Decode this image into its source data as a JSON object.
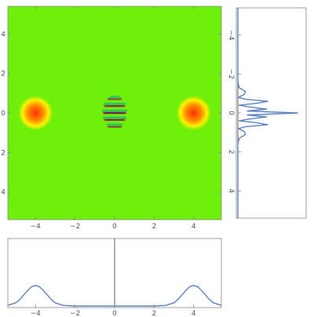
{
  "colors": {
    "field": "#6ef00a",
    "hot_outer": "#fff200",
    "hot_mid": "#ff8a00",
    "hot_core": "#ff3000",
    "stripe_dark": "#1e2a7a",
    "stripe_red": "#d81c1c",
    "stripe_green": "#21c860",
    "curve": "#5b82bf",
    "axis": "#888888"
  },
  "chart_data": [
    {
      "type": "heatmap",
      "title": "",
      "xlabel": "",
      "ylabel": "",
      "xlim": [
        -5.4,
        5.4
      ],
      "ylim": [
        -5.4,
        5.4
      ],
      "x_ticks": [
        -4,
        -2,
        0,
        2,
        4
      ],
      "y_ticks": [
        4,
        2,
        0,
        -2,
        -4
      ],
      "x_tick_labels": [
        "−4",
        "−2",
        "0",
        "2",
        "4"
      ],
      "y_tick_labels": [
        "4",
        "2",
        "0",
        "2",
        "4"
      ],
      "features": [
        {
          "kind": "gaussian-spot",
          "x": -4,
          "y": 0,
          "sigma": 0.4
        },
        {
          "kind": "gaussian-spot",
          "x": 4,
          "y": 0,
          "sigma": 0.4
        },
        {
          "kind": "interference-fringes",
          "x": 0,
          "y": 0,
          "width": 1.3,
          "height": 1.8,
          "fringe_spacing": 0.35
        }
      ]
    },
    {
      "type": "line",
      "orientation": "vertical",
      "title": "",
      "ylim": [
        -5.4,
        5.4
      ],
      "y_ticks": [
        -4,
        -2,
        0,
        2,
        4
      ],
      "y_tick_labels": [
        "−4",
        "−2",
        "0",
        "2",
        "4"
      ],
      "series": [
        {
          "y": [
            -5.4,
            -1.6,
            -1.3,
            -1.1,
            -0.95,
            -0.8,
            -0.7,
            -0.6,
            -0.5,
            -0.4,
            -0.3,
            -0.2,
            -0.1,
            0,
            0.1,
            0.2,
            0.3,
            0.4,
            0.5,
            0.6,
            0.7,
            0.8,
            0.95,
            1.1,
            1.3,
            1.6,
            5.4
          ],
          "values": [
            0,
            0,
            0.02,
            0.12,
            0.1,
            0.01,
            0.12,
            0.47,
            0.3,
            0.02,
            0.2,
            0.45,
            0.15,
            0.94,
            0.15,
            0.45,
            0.2,
            0.02,
            0.3,
            0.47,
            0.12,
            0.01,
            0.1,
            0.12,
            0.02,
            0,
            0
          ]
        }
      ]
    },
    {
      "type": "line",
      "title": "",
      "xlim": [
        -5.4,
        5.4
      ],
      "ylim": [
        0,
        1
      ],
      "x_ticks": [
        -4,
        -2,
        0,
        2,
        4
      ],
      "x_tick_labels": [
        "−4",
        "−2",
        "0",
        "2",
        "4"
      ],
      "series": [
        {
          "x": [
            -5.4,
            -5.0,
            -4.8,
            -4.6,
            -4.4,
            -4.2,
            -4.0,
            -3.8,
            -3.6,
            -3.4,
            -3.2,
            -3.0,
            -2.6,
            -2.0,
            0,
            2.0,
            2.6,
            3.0,
            3.2,
            3.4,
            3.6,
            3.8,
            4.0,
            4.2,
            4.4,
            4.6,
            4.8,
            5.0,
            5.4
          ],
          "values": [
            0.01,
            0.05,
            0.1,
            0.17,
            0.24,
            0.3,
            0.32,
            0.3,
            0.24,
            0.17,
            0.1,
            0.05,
            0.01,
            0,
            0,
            0,
            0.01,
            0.05,
            0.1,
            0.17,
            0.24,
            0.3,
            0.32,
            0.3,
            0.24,
            0.17,
            0.1,
            0.05,
            0.01
          ]
        }
      ]
    }
  ]
}
